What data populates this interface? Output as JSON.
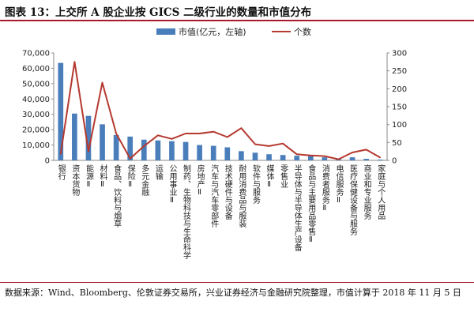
{
  "figure": {
    "title": "图表 13：上交所 A 股企业按 GICS 二级行业的数量和市值分布",
    "source": "数据来源：Wind、Bloomberg、伦敦证券交易所，兴业证券经济与金融研究院整理，市值计算于 2018 年 11 月 5 日"
  },
  "colors": {
    "bar": "#4a7ebb",
    "line": "#b5392f",
    "accent": "#a6192e"
  },
  "chart_data": {
    "type": "bar",
    "categories": [
      "银行",
      "资本货物",
      "能源Ⅱ",
      "材料Ⅱ",
      "食品、饮料与烟草",
      "保险Ⅱ",
      "多元金融",
      "运输",
      "公用事业Ⅱ",
      "制药、生物科技与生命科学",
      "房地产Ⅱ",
      "汽车与汽车零部件",
      "技术硬件与设备",
      "耐用消费品与服装",
      "软件与服务",
      "媒体Ⅱ",
      "零售业",
      "半导体与半导体生产设备",
      "食品与主要用品零售Ⅱ",
      "消费者服务Ⅱ",
      "电信服务Ⅱ",
      "医疗保健设备与服务",
      "商业和专业服务",
      "家庭与个人用品"
    ],
    "series": [
      {
        "name": "市值(亿元，左轴)",
        "type": "bar",
        "axis": "left",
        "values": [
          63500,
          30500,
          29000,
          23500,
          16500,
          15500,
          13500,
          13000,
          12500,
          12000,
          10000,
          9500,
          8500,
          6000,
          5000,
          4000,
          3500,
          3000,
          3000,
          2000,
          1000,
          2000,
          1000,
          500
        ]
      },
      {
        "name": "个数",
        "type": "line",
        "axis": "right",
        "values": [
          18,
          275,
          25,
          217,
          75,
          5,
          40,
          70,
          60,
          75,
          75,
          80,
          65,
          90,
          45,
          40,
          47,
          17,
          14,
          12,
          3,
          22,
          30,
          8
        ]
      }
    ],
    "y_left": {
      "min": 0,
      "max": 70000,
      "ticks": [
        "0",
        "10,000",
        "20,000",
        "30,000",
        "40,000",
        "50,000",
        "60,000",
        "70,000"
      ]
    },
    "y_right": {
      "min": 0,
      "max": 300,
      "ticks": [
        "0",
        "50",
        "100",
        "150",
        "200",
        "250",
        "300"
      ]
    },
    "legend_position": "top-center",
    "grid": false
  }
}
